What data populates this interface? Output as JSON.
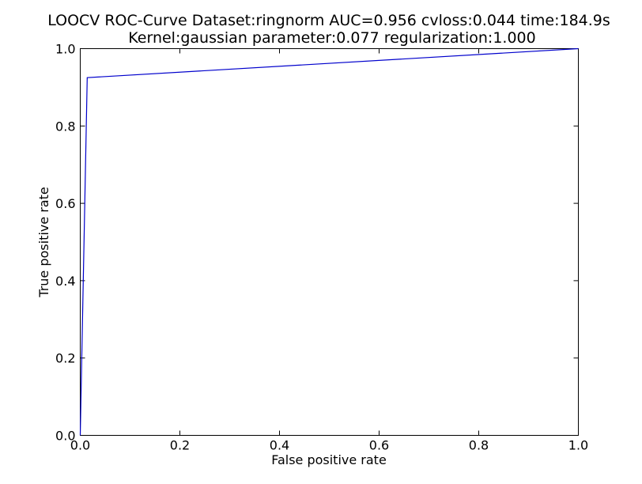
{
  "chart_data": {
    "type": "line",
    "title": "LOOCV ROC-Curve Dataset:ringnorm AUC=0.956 cvloss:0.044 time:184.9s",
    "subtitle": "Kernel:gaussian parameter:0.077 regularization:1.000",
    "xlabel": "False positive rate",
    "ylabel": "True positive rate",
    "xlim": [
      0.0,
      1.0
    ],
    "ylim": [
      0.0,
      1.0
    ],
    "x_ticks": [
      0.0,
      0.2,
      0.4,
      0.6,
      0.8,
      1.0
    ],
    "y_ticks": [
      0.0,
      0.2,
      0.4,
      0.6,
      0.8,
      1.0
    ],
    "x_tick_labels": [
      "0.0",
      "0.2",
      "0.4",
      "0.6",
      "0.8",
      "1.0"
    ],
    "y_tick_labels": [
      "0.0",
      "0.2",
      "0.4",
      "0.6",
      "0.8",
      "1.0"
    ],
    "grid": false,
    "series": [
      {
        "x": [
          0.0,
          0.014,
          1.0
        ],
        "y": [
          0.0,
          0.925,
          1.0
        ],
        "color": "#0000cc"
      }
    ]
  }
}
